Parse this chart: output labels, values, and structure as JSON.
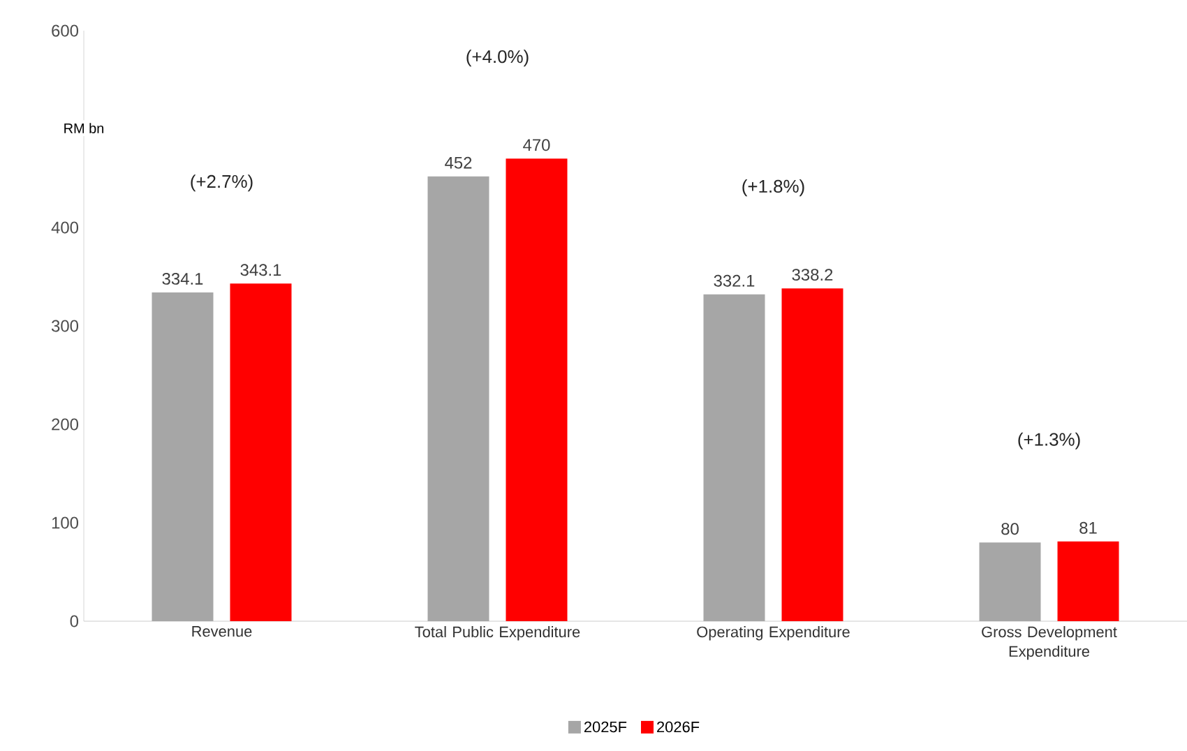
{
  "chart_data": {
    "type": "bar",
    "ylabel": "RM bn",
    "categories": [
      "Revenue",
      "Total Public Expenditure",
      "Operating Expenditure",
      "Gross Development Expenditure"
    ],
    "series": [
      {
        "name": "2025F",
        "color": "#a6a6a6",
        "values": [
          334.1,
          452,
          332.1,
          80
        ]
      },
      {
        "name": "2026F",
        "color": "#ff0000",
        "values": [
          343.1,
          470,
          338.2,
          81
        ]
      }
    ],
    "ylim": [
      0,
      600
    ],
    "yticks": [
      0,
      100,
      200,
      300,
      400,
      600
    ],
    "data_labels": true,
    "legend": "bottom",
    "grid": false,
    "annotations": [
      "(+2.7%)",
      "(+4.0%)",
      "(+1.8%)",
      "(+1.3%)"
    ]
  }
}
